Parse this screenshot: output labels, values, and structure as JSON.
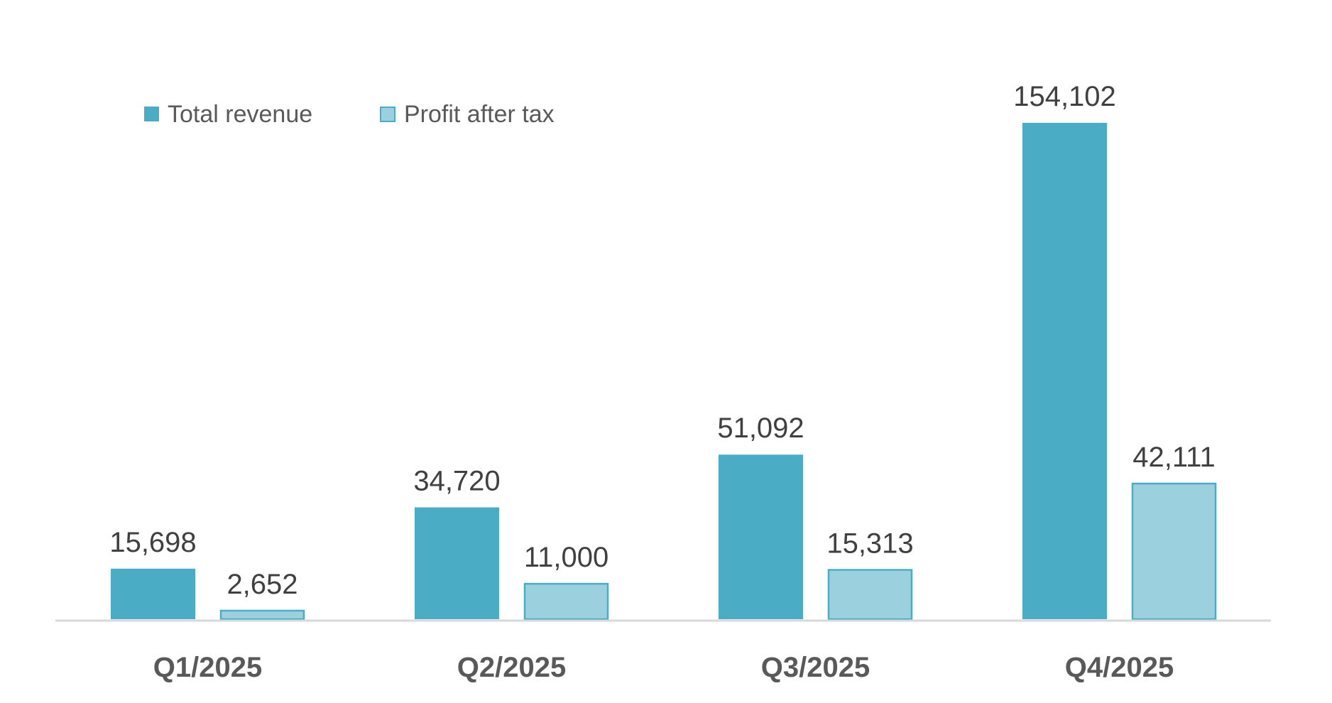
{
  "chart_data": {
    "type": "bar",
    "categories": [
      "Q1/2025",
      "Q2/2025",
      "Q3/2025",
      "Q4/2025"
    ],
    "series": [
      {
        "name": "Total revenue",
        "values": [
          15698,
          34720,
          51092,
          154102
        ],
        "labels": [
          "15,698",
          "34,720",
          "51,092",
          "154,102"
        ],
        "color": "#4BACC6",
        "border": "#4BACC6"
      },
      {
        "name": "Profit after tax",
        "values": [
          2652,
          11000,
          15313,
          42111
        ],
        "labels": [
          "2,652",
          "11,000",
          "15,313",
          "42,111"
        ],
        "color": "#9BD0DF",
        "border": "#4BACC6"
      }
    ],
    "title": "",
    "xlabel": "",
    "ylabel": "",
    "ylim": [
      0,
      154102
    ],
    "grid": false,
    "legend": "top-left",
    "axis_color": "#D9D9D9"
  }
}
